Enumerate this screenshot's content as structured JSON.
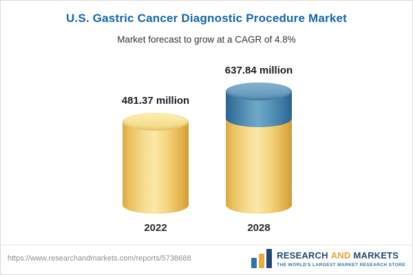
{
  "header": {
    "title": "U.S. Gastric Cancer Diagnostic Procedure Market",
    "subtitle": "Market forecast to grow at a CAGR of 4.8%"
  },
  "chart_data": {
    "type": "bar",
    "title": "U.S. Gastric Cancer Diagnostic Procedure Market",
    "subtitle": "Market forecast to grow at a CAGR of 4.8%",
    "categories": [
      "2022",
      "2028"
    ],
    "values": [
      481.37,
      637.84
    ],
    "value_labels": [
      "481.37 million",
      "637.84 million"
    ],
    "unit": "million",
    "cagr": "4.8%",
    "ylim": [
      0,
      700
    ],
    "bar_style": "3d-cylinder",
    "legend": "none",
    "grid": false,
    "colors": {
      "bar_2022": "#F3D47B",
      "bar_2028_base": "#F3D47B",
      "bar_2028_top": "#4A85AC",
      "title": "#1266B1"
    }
  },
  "footer": {
    "url": "https://www.researchandmarkets.com/reports/5738688",
    "logo": {
      "research": "RESEARCH",
      "and": "AND",
      "markets": "MARKETS",
      "tagline": "THE WORLD'S LARGEST MARKET RESEARCH STORE"
    }
  }
}
